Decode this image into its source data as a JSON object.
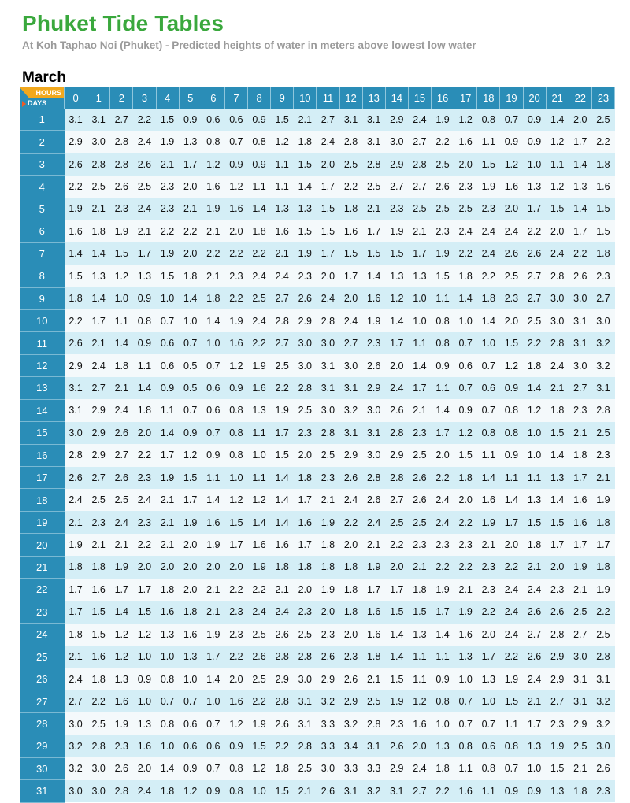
{
  "title": "Phuket Tide Tables",
  "subtitle": "At Koh Taphao Noi (Phuket) - Predicted heights of water in meters above lowest low water",
  "month": "March",
  "corner": {
    "hours_label": "HOURS",
    "days_label": "DAYS"
  },
  "hours": [
    "0",
    "1",
    "2",
    "3",
    "4",
    "5",
    "6",
    "7",
    "8",
    "9",
    "10",
    "11",
    "12",
    "13",
    "14",
    "15",
    "16",
    "17",
    "18",
    "19",
    "20",
    "21",
    "22",
    "23"
  ],
  "rows": [
    {
      "day": "1",
      "values": [
        "3.1",
        "3.1",
        "2.7",
        "2.2",
        "1.5",
        "0.9",
        "0.6",
        "0.6",
        "0.9",
        "1.5",
        "2.1",
        "2.7",
        "3.1",
        "3.1",
        "2.9",
        "2.4",
        "1.9",
        "1.2",
        "0.8",
        "0.7",
        "0.9",
        "1.4",
        "2.0",
        "2.5"
      ]
    },
    {
      "day": "2",
      "values": [
        "2.9",
        "3.0",
        "2.8",
        "2.4",
        "1.9",
        "1.3",
        "0.8",
        "0.7",
        "0.8",
        "1.2",
        "1.8",
        "2.4",
        "2.8",
        "3.1",
        "3.0",
        "2.7",
        "2.2",
        "1.6",
        "1.1",
        "0.9",
        "0.9",
        "1.2",
        "1.7",
        "2.2"
      ]
    },
    {
      "day": "3",
      "values": [
        "2.6",
        "2.8",
        "2.8",
        "2.6",
        "2.1",
        "1.7",
        "1.2",
        "0.9",
        "0.9",
        "1.1",
        "1.5",
        "2.0",
        "2.5",
        "2.8",
        "2.9",
        "2.8",
        "2.5",
        "2.0",
        "1.5",
        "1.2",
        "1.0",
        "1.1",
        "1.4",
        "1.8"
      ]
    },
    {
      "day": "4",
      "values": [
        "2.2",
        "2.5",
        "2.6",
        "2.5",
        "2.3",
        "2.0",
        "1.6",
        "1.2",
        "1.1",
        "1.1",
        "1.4",
        "1.7",
        "2.2",
        "2.5",
        "2.7",
        "2.7",
        "2.6",
        "2.3",
        "1.9",
        "1.6",
        "1.3",
        "1.2",
        "1.3",
        "1.6"
      ]
    },
    {
      "day": "5",
      "values": [
        "1.9",
        "2.1",
        "2.3",
        "2.4",
        "2.3",
        "2.1",
        "1.9",
        "1.6",
        "1.4",
        "1.3",
        "1.3",
        "1.5",
        "1.8",
        "2.1",
        "2.3",
        "2.5",
        "2.5",
        "2.5",
        "2.3",
        "2.0",
        "1.7",
        "1.5",
        "1.4",
        "1.5"
      ]
    },
    {
      "day": "6",
      "values": [
        "1.6",
        "1.8",
        "1.9",
        "2.1",
        "2.2",
        "2.2",
        "2.1",
        "2.0",
        "1.8",
        "1.6",
        "1.5",
        "1.5",
        "1.6",
        "1.7",
        "1.9",
        "2.1",
        "2.3",
        "2.4",
        "2.4",
        "2.4",
        "2.2",
        "2.0",
        "1.7",
        "1.5"
      ]
    },
    {
      "day": "7",
      "values": [
        "1.4",
        "1.4",
        "1.5",
        "1.7",
        "1.9",
        "2.0",
        "2.2",
        "2.2",
        "2.2",
        "2.1",
        "1.9",
        "1.7",
        "1.5",
        "1.5",
        "1.5",
        "1.7",
        "1.9",
        "2.2",
        "2.4",
        "2.6",
        "2.6",
        "2.4",
        "2.2",
        "1.8"
      ]
    },
    {
      "day": "8",
      "values": [
        "1.5",
        "1.3",
        "1.2",
        "1.3",
        "1.5",
        "1.8",
        "2.1",
        "2.3",
        "2.4",
        "2.4",
        "2.3",
        "2.0",
        "1.7",
        "1.4",
        "1.3",
        "1.3",
        "1.5",
        "1.8",
        "2.2",
        "2.5",
        "2.7",
        "2.8",
        "2.6",
        "2.3"
      ]
    },
    {
      "day": "9",
      "values": [
        "1.8",
        "1.4",
        "1.0",
        "0.9",
        "1.0",
        "1.4",
        "1.8",
        "2.2",
        "2.5",
        "2.7",
        "2.6",
        "2.4",
        "2.0",
        "1.6",
        "1.2",
        "1.0",
        "1.1",
        "1.4",
        "1.8",
        "2.3",
        "2.7",
        "3.0",
        "3.0",
        "2.7"
      ]
    },
    {
      "day": "10",
      "values": [
        "2.2",
        "1.7",
        "1.1",
        "0.8",
        "0.7",
        "1.0",
        "1.4",
        "1.9",
        "2.4",
        "2.8",
        "2.9",
        "2.8",
        "2.4",
        "1.9",
        "1.4",
        "1.0",
        "0.8",
        "1.0",
        "1.4",
        "2.0",
        "2.5",
        "3.0",
        "3.1",
        "3.0"
      ]
    },
    {
      "day": "11",
      "values": [
        "2.6",
        "2.1",
        "1.4",
        "0.9",
        "0.6",
        "0.7",
        "1.0",
        "1.6",
        "2.2",
        "2.7",
        "3.0",
        "3.0",
        "2.7",
        "2.3",
        "1.7",
        "1.1",
        "0.8",
        "0.7",
        "1.0",
        "1.5",
        "2.2",
        "2.8",
        "3.1",
        "3.2"
      ]
    },
    {
      "day": "12",
      "values": [
        "2.9",
        "2.4",
        "1.8",
        "1.1",
        "0.6",
        "0.5",
        "0.7",
        "1.2",
        "1.9",
        "2.5",
        "3.0",
        "3.1",
        "3.0",
        "2.6",
        "2.0",
        "1.4",
        "0.9",
        "0.6",
        "0.7",
        "1.2",
        "1.8",
        "2.4",
        "3.0",
        "3.2"
      ]
    },
    {
      "day": "13",
      "values": [
        "3.1",
        "2.7",
        "2.1",
        "1.4",
        "0.9",
        "0.5",
        "0.6",
        "0.9",
        "1.6",
        "2.2",
        "2.8",
        "3.1",
        "3.1",
        "2.9",
        "2.4",
        "1.7",
        "1.1",
        "0.7",
        "0.6",
        "0.9",
        "1.4",
        "2.1",
        "2.7",
        "3.1"
      ]
    },
    {
      "day": "14",
      "values": [
        "3.1",
        "2.9",
        "2.4",
        "1.8",
        "1.1",
        "0.7",
        "0.6",
        "0.8",
        "1.3",
        "1.9",
        "2.5",
        "3.0",
        "3.2",
        "3.0",
        "2.6",
        "2.1",
        "1.4",
        "0.9",
        "0.7",
        "0.8",
        "1.2",
        "1.8",
        "2.3",
        "2.8"
      ]
    },
    {
      "day": "15",
      "values": [
        "3.0",
        "2.9",
        "2.6",
        "2.0",
        "1.4",
        "0.9",
        "0.7",
        "0.8",
        "1.1",
        "1.7",
        "2.3",
        "2.8",
        "3.1",
        "3.1",
        "2.8",
        "2.3",
        "1.7",
        "1.2",
        "0.8",
        "0.8",
        "1.0",
        "1.5",
        "2.1",
        "2.5"
      ]
    },
    {
      "day": "16",
      "values": [
        "2.8",
        "2.9",
        "2.7",
        "2.2",
        "1.7",
        "1.2",
        "0.9",
        "0.8",
        "1.0",
        "1.5",
        "2.0",
        "2.5",
        "2.9",
        "3.0",
        "2.9",
        "2.5",
        "2.0",
        "1.5",
        "1.1",
        "0.9",
        "1.0",
        "1.4",
        "1.8",
        "2.3"
      ]
    },
    {
      "day": "17",
      "values": [
        "2.6",
        "2.7",
        "2.6",
        "2.3",
        "1.9",
        "1.5",
        "1.1",
        "1.0",
        "1.1",
        "1.4",
        "1.8",
        "2.3",
        "2.6",
        "2.8",
        "2.8",
        "2.6",
        "2.2",
        "1.8",
        "1.4",
        "1.1",
        "1.1",
        "1.3",
        "1.7",
        "2.1"
      ]
    },
    {
      "day": "18",
      "values": [
        "2.4",
        "2.5",
        "2.5",
        "2.4",
        "2.1",
        "1.7",
        "1.4",
        "1.2",
        "1.2",
        "1.4",
        "1.7",
        "2.1",
        "2.4",
        "2.6",
        "2.7",
        "2.6",
        "2.4",
        "2.0",
        "1.6",
        "1.4",
        "1.3",
        "1.4",
        "1.6",
        "1.9"
      ]
    },
    {
      "day": "19",
      "values": [
        "2.1",
        "2.3",
        "2.4",
        "2.3",
        "2.1",
        "1.9",
        "1.6",
        "1.5",
        "1.4",
        "1.4",
        "1.6",
        "1.9",
        "2.2",
        "2.4",
        "2.5",
        "2.5",
        "2.4",
        "2.2",
        "1.9",
        "1.7",
        "1.5",
        "1.5",
        "1.6",
        "1.8"
      ]
    },
    {
      "day": "20",
      "values": [
        "1.9",
        "2.1",
        "2.1",
        "2.2",
        "2.1",
        "2.0",
        "1.9",
        "1.7",
        "1.6",
        "1.6",
        "1.7",
        "1.8",
        "2.0",
        "2.1",
        "2.2",
        "2.3",
        "2.3",
        "2.3",
        "2.1",
        "2.0",
        "1.8",
        "1.7",
        "1.7",
        "1.7"
      ]
    },
    {
      "day": "21",
      "values": [
        "1.8",
        "1.8",
        "1.9",
        "2.0",
        "2.0",
        "2.0",
        "2.0",
        "2.0",
        "1.9",
        "1.8",
        "1.8",
        "1.8",
        "1.8",
        "1.9",
        "2.0",
        "2.1",
        "2.2",
        "2.2",
        "2.3",
        "2.2",
        "2.1",
        "2.0",
        "1.9",
        "1.8"
      ]
    },
    {
      "day": "22",
      "values": [
        "1.7",
        "1.6",
        "1.7",
        "1.7",
        "1.8",
        "2.0",
        "2.1",
        "2.2",
        "2.2",
        "2.1",
        "2.0",
        "1.9",
        "1.8",
        "1.7",
        "1.7",
        "1.8",
        "1.9",
        "2.1",
        "2.3",
        "2.4",
        "2.4",
        "2.3",
        "2.1",
        "1.9"
      ]
    },
    {
      "day": "23",
      "values": [
        "1.7",
        "1.5",
        "1.4",
        "1.5",
        "1.6",
        "1.8",
        "2.1",
        "2.3",
        "2.4",
        "2.4",
        "2.3",
        "2.0",
        "1.8",
        "1.6",
        "1.5",
        "1.5",
        "1.7",
        "1.9",
        "2.2",
        "2.4",
        "2.6",
        "2.6",
        "2.5",
        "2.2"
      ]
    },
    {
      "day": "24",
      "values": [
        "1.8",
        "1.5",
        "1.2",
        "1.2",
        "1.3",
        "1.6",
        "1.9",
        "2.3",
        "2.5",
        "2.6",
        "2.5",
        "2.3",
        "2.0",
        "1.6",
        "1.4",
        "1.3",
        "1.4",
        "1.6",
        "2.0",
        "2.4",
        "2.7",
        "2.8",
        "2.7",
        "2.5"
      ]
    },
    {
      "day": "25",
      "values": [
        "2.1",
        "1.6",
        "1.2",
        "1.0",
        "1.0",
        "1.3",
        "1.7",
        "2.2",
        "2.6",
        "2.8",
        "2.8",
        "2.6",
        "2.3",
        "1.8",
        "1.4",
        "1.1",
        "1.1",
        "1.3",
        "1.7",
        "2.2",
        "2.6",
        "2.9",
        "3.0",
        "2.8"
      ]
    },
    {
      "day": "26",
      "values": [
        "2.4",
        "1.8",
        "1.3",
        "0.9",
        "0.8",
        "1.0",
        "1.4",
        "2.0",
        "2.5",
        "2.9",
        "3.0",
        "2.9",
        "2.6",
        "2.1",
        "1.5",
        "1.1",
        "0.9",
        "1.0",
        "1.3",
        "1.9",
        "2.4",
        "2.9",
        "3.1",
        "3.1"
      ]
    },
    {
      "day": "27",
      "values": [
        "2.7",
        "2.2",
        "1.6",
        "1.0",
        "0.7",
        "0.7",
        "1.0",
        "1.6",
        "2.2",
        "2.8",
        "3.1",
        "3.2",
        "2.9",
        "2.5",
        "1.9",
        "1.2",
        "0.8",
        "0.7",
        "1.0",
        "1.5",
        "2.1",
        "2.7",
        "3.1",
        "3.2"
      ]
    },
    {
      "day": "28",
      "values": [
        "3.0",
        "2.5",
        "1.9",
        "1.3",
        "0.8",
        "0.6",
        "0.7",
        "1.2",
        "1.9",
        "2.6",
        "3.1",
        "3.3",
        "3.2",
        "2.8",
        "2.3",
        "1.6",
        "1.0",
        "0.7",
        "0.7",
        "1.1",
        "1.7",
        "2.3",
        "2.9",
        "3.2"
      ]
    },
    {
      "day": "29",
      "values": [
        "3.2",
        "2.8",
        "2.3",
        "1.6",
        "1.0",
        "0.6",
        "0.6",
        "0.9",
        "1.5",
        "2.2",
        "2.8",
        "3.3",
        "3.4",
        "3.1",
        "2.6",
        "2.0",
        "1.3",
        "0.8",
        "0.6",
        "0.8",
        "1.3",
        "1.9",
        "2.5",
        "3.0"
      ]
    },
    {
      "day": "30",
      "values": [
        "3.2",
        "3.0",
        "2.6",
        "2.0",
        "1.4",
        "0.9",
        "0.7",
        "0.8",
        "1.2",
        "1.8",
        "2.5",
        "3.0",
        "3.3",
        "3.3",
        "2.9",
        "2.4",
        "1.8",
        "1.1",
        "0.8",
        "0.7",
        "1.0",
        "1.5",
        "2.1",
        "2.6"
      ]
    },
    {
      "day": "31",
      "values": [
        "3.0",
        "3.0",
        "2.8",
        "2.4",
        "1.8",
        "1.2",
        "0.9",
        "0.8",
        "1.0",
        "1.5",
        "2.1",
        "2.6",
        "3.1",
        "3.2",
        "3.1",
        "2.7",
        "2.2",
        "1.6",
        "1.1",
        "0.9",
        "0.9",
        "1.3",
        "1.8",
        "2.3"
      ]
    }
  ]
}
